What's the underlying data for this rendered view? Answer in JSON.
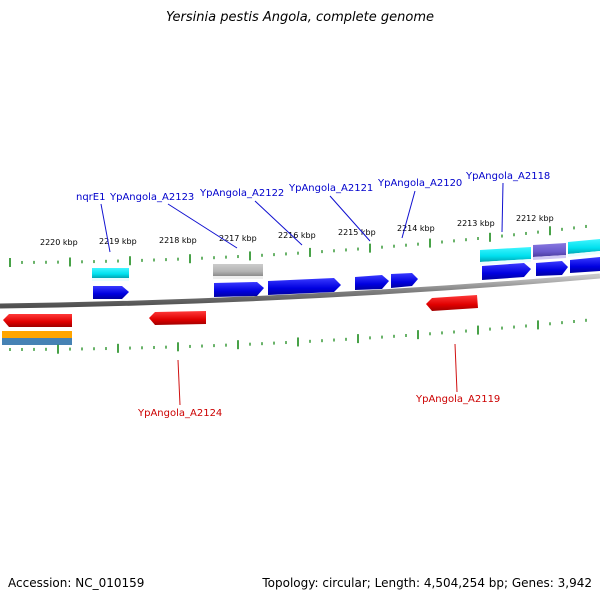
{
  "title": "Yersinia pestis Angola, complete genome",
  "footer": {
    "accession": "Accession: NC_010159",
    "topology": "Topology: circular; Length: 4,504,254 bp; Genes: 3,942"
  },
  "scale_labels": [
    "2220 kbp",
    "2219 kbp",
    "2218 kbp",
    "2217 kbp",
    "2216 kbp",
    "2215 kbp",
    "2214 kbp",
    "2213 kbp",
    "2212 kbp"
  ],
  "gene_labels": {
    "top": [
      "nqrE1",
      "YpAngola_A2123",
      "YpAngola_A2122",
      "YpAngola_A2121",
      "YpAngola_A2120",
      "YpAngola_A2118"
    ],
    "bottom": [
      "YpAngola_A2124",
      "YpAngola_A2119"
    ]
  },
  "colors": {
    "forward_gene": "#0000ee",
    "reverse_gene": "#ee0000",
    "cyan_feature": "#00e5ee",
    "gray_feature": "#b4b4b4",
    "purple_feature": "#6a5acd",
    "orange_feature": "#ffa500",
    "steelblue_feature": "#4682b4",
    "tick": "#1a8a1a",
    "backbone": "#808080",
    "top_label": "#0000cc",
    "bottom_label": "#cc0000"
  }
}
